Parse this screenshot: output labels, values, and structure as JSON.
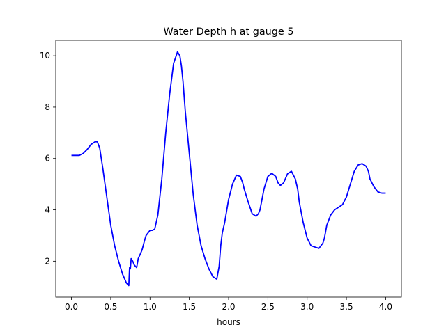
{
  "chart_data": {
    "type": "line",
    "title": "Water Depth h at gauge 5",
    "xlabel": "hours",
    "ylabel": "",
    "xlim": [
      -0.2,
      4.2
    ],
    "ylim": [
      0.6,
      10.6
    ],
    "xticks": [
      0.0,
      0.5,
      1.0,
      1.5,
      2.0,
      2.5,
      3.0,
      3.5,
      4.0
    ],
    "xtick_labels": [
      "0.0",
      "0.5",
      "1.0",
      "1.5",
      "2.0",
      "2.5",
      "3.0",
      "3.5",
      "4.0"
    ],
    "yticks": [
      2,
      4,
      6,
      8,
      10
    ],
    "ytick_labels": [
      "2",
      "4",
      "6",
      "8",
      "10"
    ],
    "grid": false,
    "legend": "none",
    "series": [
      {
        "color": "#0000ff",
        "x": [
          0.0,
          0.05,
          0.1,
          0.15,
          0.2,
          0.25,
          0.3,
          0.33,
          0.36,
          0.4,
          0.45,
          0.5,
          0.55,
          0.6,
          0.65,
          0.7,
          0.73,
          0.74,
          0.75,
          0.76,
          0.78,
          0.8,
          0.83,
          0.85,
          0.88,
          0.9,
          0.93,
          0.95,
          1.0,
          1.03,
          1.06,
          1.1,
          1.15,
          1.2,
          1.25,
          1.3,
          1.35,
          1.38,
          1.4,
          1.42,
          1.45,
          1.5,
          1.55,
          1.6,
          1.65,
          1.7,
          1.75,
          1.8,
          1.85,
          1.88,
          1.9,
          1.92,
          1.95,
          2.0,
          2.05,
          2.1,
          2.15,
          2.18,
          2.2,
          2.25,
          2.3,
          2.35,
          2.38,
          2.4,
          2.45,
          2.5,
          2.55,
          2.6,
          2.63,
          2.66,
          2.7,
          2.75,
          2.8,
          2.85,
          2.88,
          2.9,
          2.95,
          3.0,
          3.05,
          3.1,
          3.15,
          3.2,
          3.22,
          3.25,
          3.3,
          3.35,
          3.4,
          3.45,
          3.5,
          3.55,
          3.6,
          3.65,
          3.7,
          3.75,
          3.78,
          3.8,
          3.85,
          3.9,
          3.95,
          4.0
        ],
        "y": [
          6.12,
          6.12,
          6.12,
          6.2,
          6.35,
          6.55,
          6.65,
          6.65,
          6.4,
          5.6,
          4.5,
          3.4,
          2.6,
          2.0,
          1.5,
          1.15,
          1.05,
          1.75,
          1.7,
          2.1,
          2.0,
          1.85,
          1.75,
          2.1,
          2.3,
          2.45,
          2.8,
          3.0,
          3.2,
          3.2,
          3.25,
          3.8,
          5.2,
          7.0,
          8.5,
          9.7,
          10.15,
          10.0,
          9.6,
          9.0,
          7.8,
          6.2,
          4.6,
          3.4,
          2.6,
          2.1,
          1.7,
          1.4,
          1.3,
          1.8,
          2.6,
          3.1,
          3.5,
          4.4,
          5.0,
          5.35,
          5.3,
          5.05,
          4.8,
          4.3,
          3.85,
          3.75,
          3.85,
          4.0,
          4.8,
          5.3,
          5.42,
          5.3,
          5.05,
          4.95,
          5.05,
          5.4,
          5.5,
          5.2,
          4.8,
          4.3,
          3.5,
          2.9,
          2.6,
          2.55,
          2.5,
          2.7,
          2.9,
          3.4,
          3.8,
          4.0,
          4.1,
          4.2,
          4.5,
          5.0,
          5.5,
          5.75,
          5.8,
          5.7,
          5.5,
          5.2,
          4.9,
          4.7,
          4.65,
          4.65
        ]
      }
    ]
  }
}
